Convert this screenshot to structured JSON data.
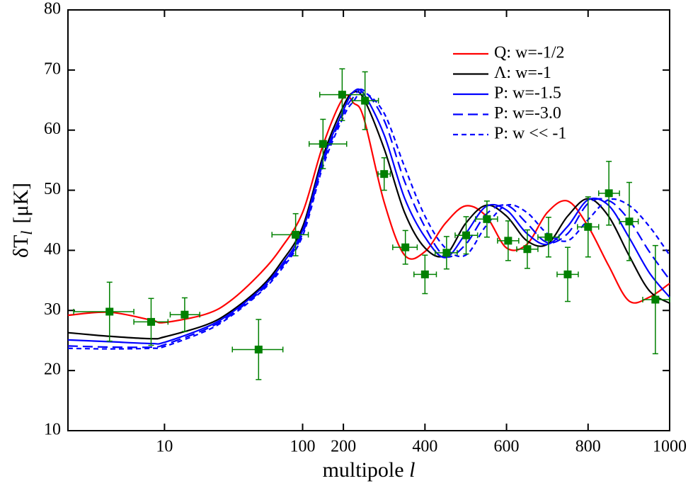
{
  "chart_data": {
    "type": "line",
    "xlabel": "multipole",
    "xlabel_var": "l",
    "ylabel": "δT",
    "ylabel_sub": "l",
    "ylabel_unit": "[μK]",
    "xscale": "log-linear",
    "xswitch": 100,
    "xlim": [
      2,
      1000
    ],
    "ylim": [
      10,
      80
    ],
    "xticks": [
      10,
      100,
      200,
      400,
      600,
      800,
      1000
    ],
    "yticks": [
      10,
      20,
      30,
      40,
      50,
      60,
      70,
      80
    ],
    "legend": "upper right",
    "x": [
      2,
      4,
      8,
      10,
      20,
      30,
      50,
      70,
      100,
      150,
      200,
      225,
      250,
      300,
      350,
      400,
      450,
      500,
      550,
      600,
      650,
      700,
      750,
      800,
      850,
      900,
      950,
      1000
    ],
    "series": [
      {
        "name": "Q: w=-1/2",
        "color": "#ff0000",
        "linestyle": "solid",
        "values": [
          29.2,
          29.7,
          28.4,
          28,
          29.4,
          31.6,
          36.3,
          40.4,
          46.3,
          57.5,
          65.4,
          64.5,
          62,
          48,
          39.2,
          39.8,
          44.5,
          47.4,
          45.7,
          40.4,
          41,
          46.3,
          48.2,
          44,
          37.5,
          31.6,
          32.2,
          34.5
        ]
      },
      {
        "name": "Λ: w=-1",
        "color": "#000000",
        "linestyle": "solid",
        "values": [
          26.3,
          25.7,
          25.3,
          25.6,
          27.6,
          29.8,
          33.9,
          38,
          43.9,
          55.7,
          64,
          66.3,
          65.2,
          56.9,
          46.3,
          40.4,
          39.2,
          44.5,
          47.5,
          45.7,
          41.6,
          41,
          45.7,
          48.6,
          45.7,
          39.2,
          33.3,
          31.2
        ]
      },
      {
        "name": "P: w=-1.5",
        "color": "#0000ff",
        "linestyle": "solid",
        "values": [
          25.1,
          24.8,
          24.5,
          24.7,
          27.2,
          29.5,
          33.6,
          37.5,
          43.3,
          55.1,
          63.3,
          66.4,
          66,
          59.2,
          48.7,
          42.2,
          38.8,
          42.8,
          47.3,
          46.7,
          42.8,
          41,
          44,
          48.4,
          47.5,
          42.2,
          36.3,
          32.2
        ]
      },
      {
        "name": "P: w=-3.0",
        "color": "#0000ff",
        "linestyle": "long-dash",
        "values": [
          24.1,
          23.9,
          23.9,
          24.3,
          26.9,
          29.2,
          33.3,
          37.1,
          42.8,
          54.5,
          62.8,
          65.5,
          66.6,
          61.6,
          51.5,
          43.9,
          39,
          41,
          46,
          47.5,
          44.5,
          41.3,
          42.8,
          47.8,
          48.3,
          45.1,
          39.8,
          35.1
        ]
      },
      {
        "name": "P: w << -1",
        "color": "#0000ff",
        "linestyle": "dash",
        "values": [
          23.7,
          23.6,
          23.7,
          24,
          26.6,
          29,
          33.1,
          36.8,
          42.4,
          54,
          62.2,
          64.8,
          66.3,
          62.8,
          53.9,
          45.7,
          40.4,
          39.2,
          44.1,
          47.5,
          46.3,
          42.8,
          41.6,
          45.1,
          48.4,
          47.5,
          44,
          39.2
        ]
      }
    ],
    "data_points": {
      "color": "#008000",
      "x": [
        4,
        8,
        14,
        48,
        89,
        150,
        197,
        253,
        300,
        352,
        400,
        453,
        501,
        552,
        604,
        651,
        703,
        750,
        800,
        851,
        901,
        965
      ],
      "values": [
        29.8,
        28.1,
        29.3,
        23.5,
        42.6,
        57.7,
        65.9,
        64.9,
        52.7,
        40.5,
        36,
        39.6,
        42.5,
        45.2,
        41.6,
        40.2,
        42.2,
        36,
        43.9,
        49.5,
        44.8,
        31.8
      ],
      "yerr": [
        4.9,
        3.9,
        2.8,
        5,
        3.5,
        4.1,
        4.3,
        4.8,
        2.7,
        2.8,
        3.2,
        2.7,
        3.1,
        3,
        3.3,
        3.2,
        3.3,
        4.5,
        5,
        5.3,
        6.5,
        9
      ],
      "xlow": [
        2.2,
        6,
        11,
        31,
        60,
        116,
        142,
        222,
        285,
        321,
        373,
        425,
        474,
        524,
        578,
        625,
        677,
        724,
        774,
        826,
        877,
        934
      ],
      "xhigh": [
        6,
        10.6,
        18,
        72,
        114,
        208,
        249,
        286,
        315,
        381,
        428,
        479,
        529,
        578,
        630,
        677,
        729,
        776,
        826,
        877,
        923,
        1000
      ]
    }
  }
}
